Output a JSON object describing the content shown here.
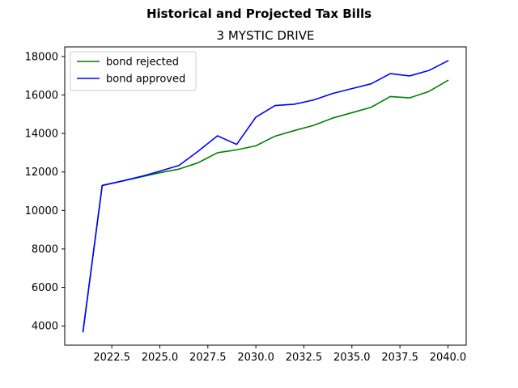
{
  "chart_data": {
    "type": "line",
    "title": "Historical and Projected Tax Bills",
    "subtitle": "3 MYSTIC DRIVE",
    "xlabel": "",
    "ylabel": "",
    "x": [
      2021,
      2022,
      2023,
      2024,
      2025,
      2026,
      2027,
      2028,
      2029,
      2030,
      2031,
      2032,
      2033,
      2034,
      2035,
      2036,
      2037,
      2038,
      2039,
      2040
    ],
    "series": [
      {
        "name": "bond rejected",
        "color": "#008000",
        "values": [
          3700,
          11300,
          11520,
          11740,
          11960,
          12150,
          12480,
          13000,
          13150,
          13360,
          13860,
          14150,
          14420,
          14800,
          15080,
          15360,
          15920,
          15850,
          16180,
          16760
        ]
      },
      {
        "name": "bond approved",
        "color": "#0000ff",
        "values": [
          3700,
          11300,
          11520,
          11760,
          12040,
          12340,
          13080,
          13880,
          13430,
          14850,
          15450,
          15520,
          15740,
          16080,
          16330,
          16580,
          17110,
          16990,
          17270,
          17780
        ]
      }
    ],
    "xlim": [
      2020.05,
      2040.95
    ],
    "ylim": [
      3000,
      18500
    ],
    "xticks": [
      2022.5,
      2025.0,
      2027.5,
      2030.0,
      2032.5,
      2035.0,
      2037.5,
      2040.0
    ],
    "xtick_labels": [
      "2022.5",
      "2025.0",
      "2027.5",
      "2030.0",
      "2032.5",
      "2035.0",
      "2037.5",
      "2040.0"
    ],
    "yticks": [
      4000,
      6000,
      8000,
      10000,
      12000,
      14000,
      16000,
      18000
    ],
    "ytick_labels": [
      "4000",
      "6000",
      "8000",
      "10000",
      "12000",
      "14000",
      "16000",
      "18000"
    ],
    "legend_position": "top-left",
    "grid": false
  }
}
